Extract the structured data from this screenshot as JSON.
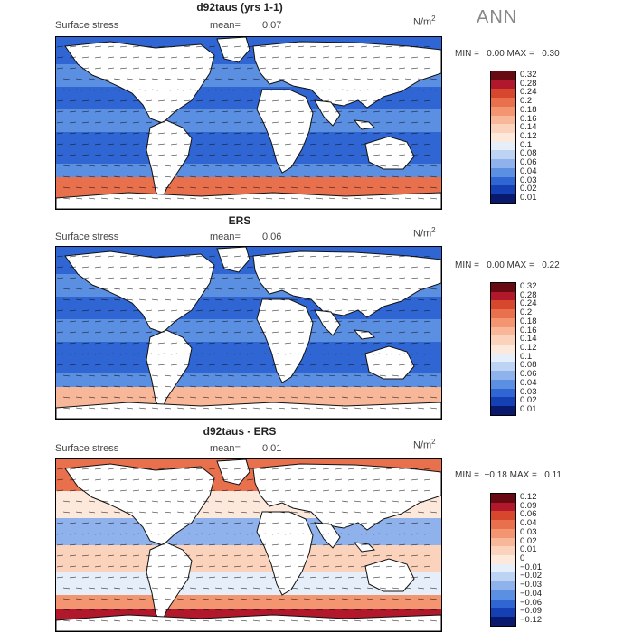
{
  "season": "ANN",
  "panels": [
    {
      "title": "d92taus (yrs 1-1)",
      "subtitle": "Surface stress",
      "mean_label": "mean=",
      "mean_value": "0.07",
      "units": "N/m",
      "units_sup": "2",
      "min_label": "MIN =",
      "min_value": "0.00",
      "max_label": "MAX =",
      "max_value": "0.30",
      "colorbar": [
        "0.32",
        "0.28",
        "0.24",
        "0.2",
        "0.18",
        "0.16",
        "0.14",
        "0.12",
        "0.1",
        "0.08",
        "0.06",
        "0.04",
        "0.03",
        "0.02",
        "0.01"
      ]
    },
    {
      "title": "ERS",
      "subtitle": "Surface stress",
      "mean_label": "mean=",
      "mean_value": "0.06",
      "units": "N/m",
      "units_sup": "2",
      "min_label": "MIN =",
      "min_value": "0.00",
      "max_label": "MAX =",
      "max_value": "0.22",
      "colorbar": [
        "0.32",
        "0.28",
        "0.24",
        "0.2",
        "0.18",
        "0.16",
        "0.14",
        "0.12",
        "0.1",
        "0.08",
        "0.06",
        "0.04",
        "0.03",
        "0.02",
        "0.01"
      ]
    },
    {
      "title": "d92taus - ERS",
      "subtitle": "Surface stress",
      "mean_label": "mean=",
      "mean_value": "0.01",
      "units": "N/m",
      "units_sup": "2",
      "min_label": "MIN =",
      "min_value": "−0.18",
      "max_label": "MAX =",
      "max_value": "0.11",
      "colorbar": [
        "0.12",
        "0.09",
        "0.06",
        "0.04",
        "0.03",
        "0.02",
        "0.01",
        "0",
        "−0.01",
        "−0.02",
        "−0.03",
        "−0.04",
        "−0.06",
        "−0.09",
        "−0.12"
      ]
    }
  ],
  "colors": {
    "scale": [
      "#670a12",
      "#b2182b",
      "#d6472e",
      "#e8704d",
      "#f29570",
      "#f7b798",
      "#fbd3bd",
      "#fde9dc",
      "#e6eefa",
      "#bcd3f3",
      "#8fb2ec",
      "#5b8fe2",
      "#2f66d4",
      "#1540b3",
      "#08196e"
    ]
  }
}
